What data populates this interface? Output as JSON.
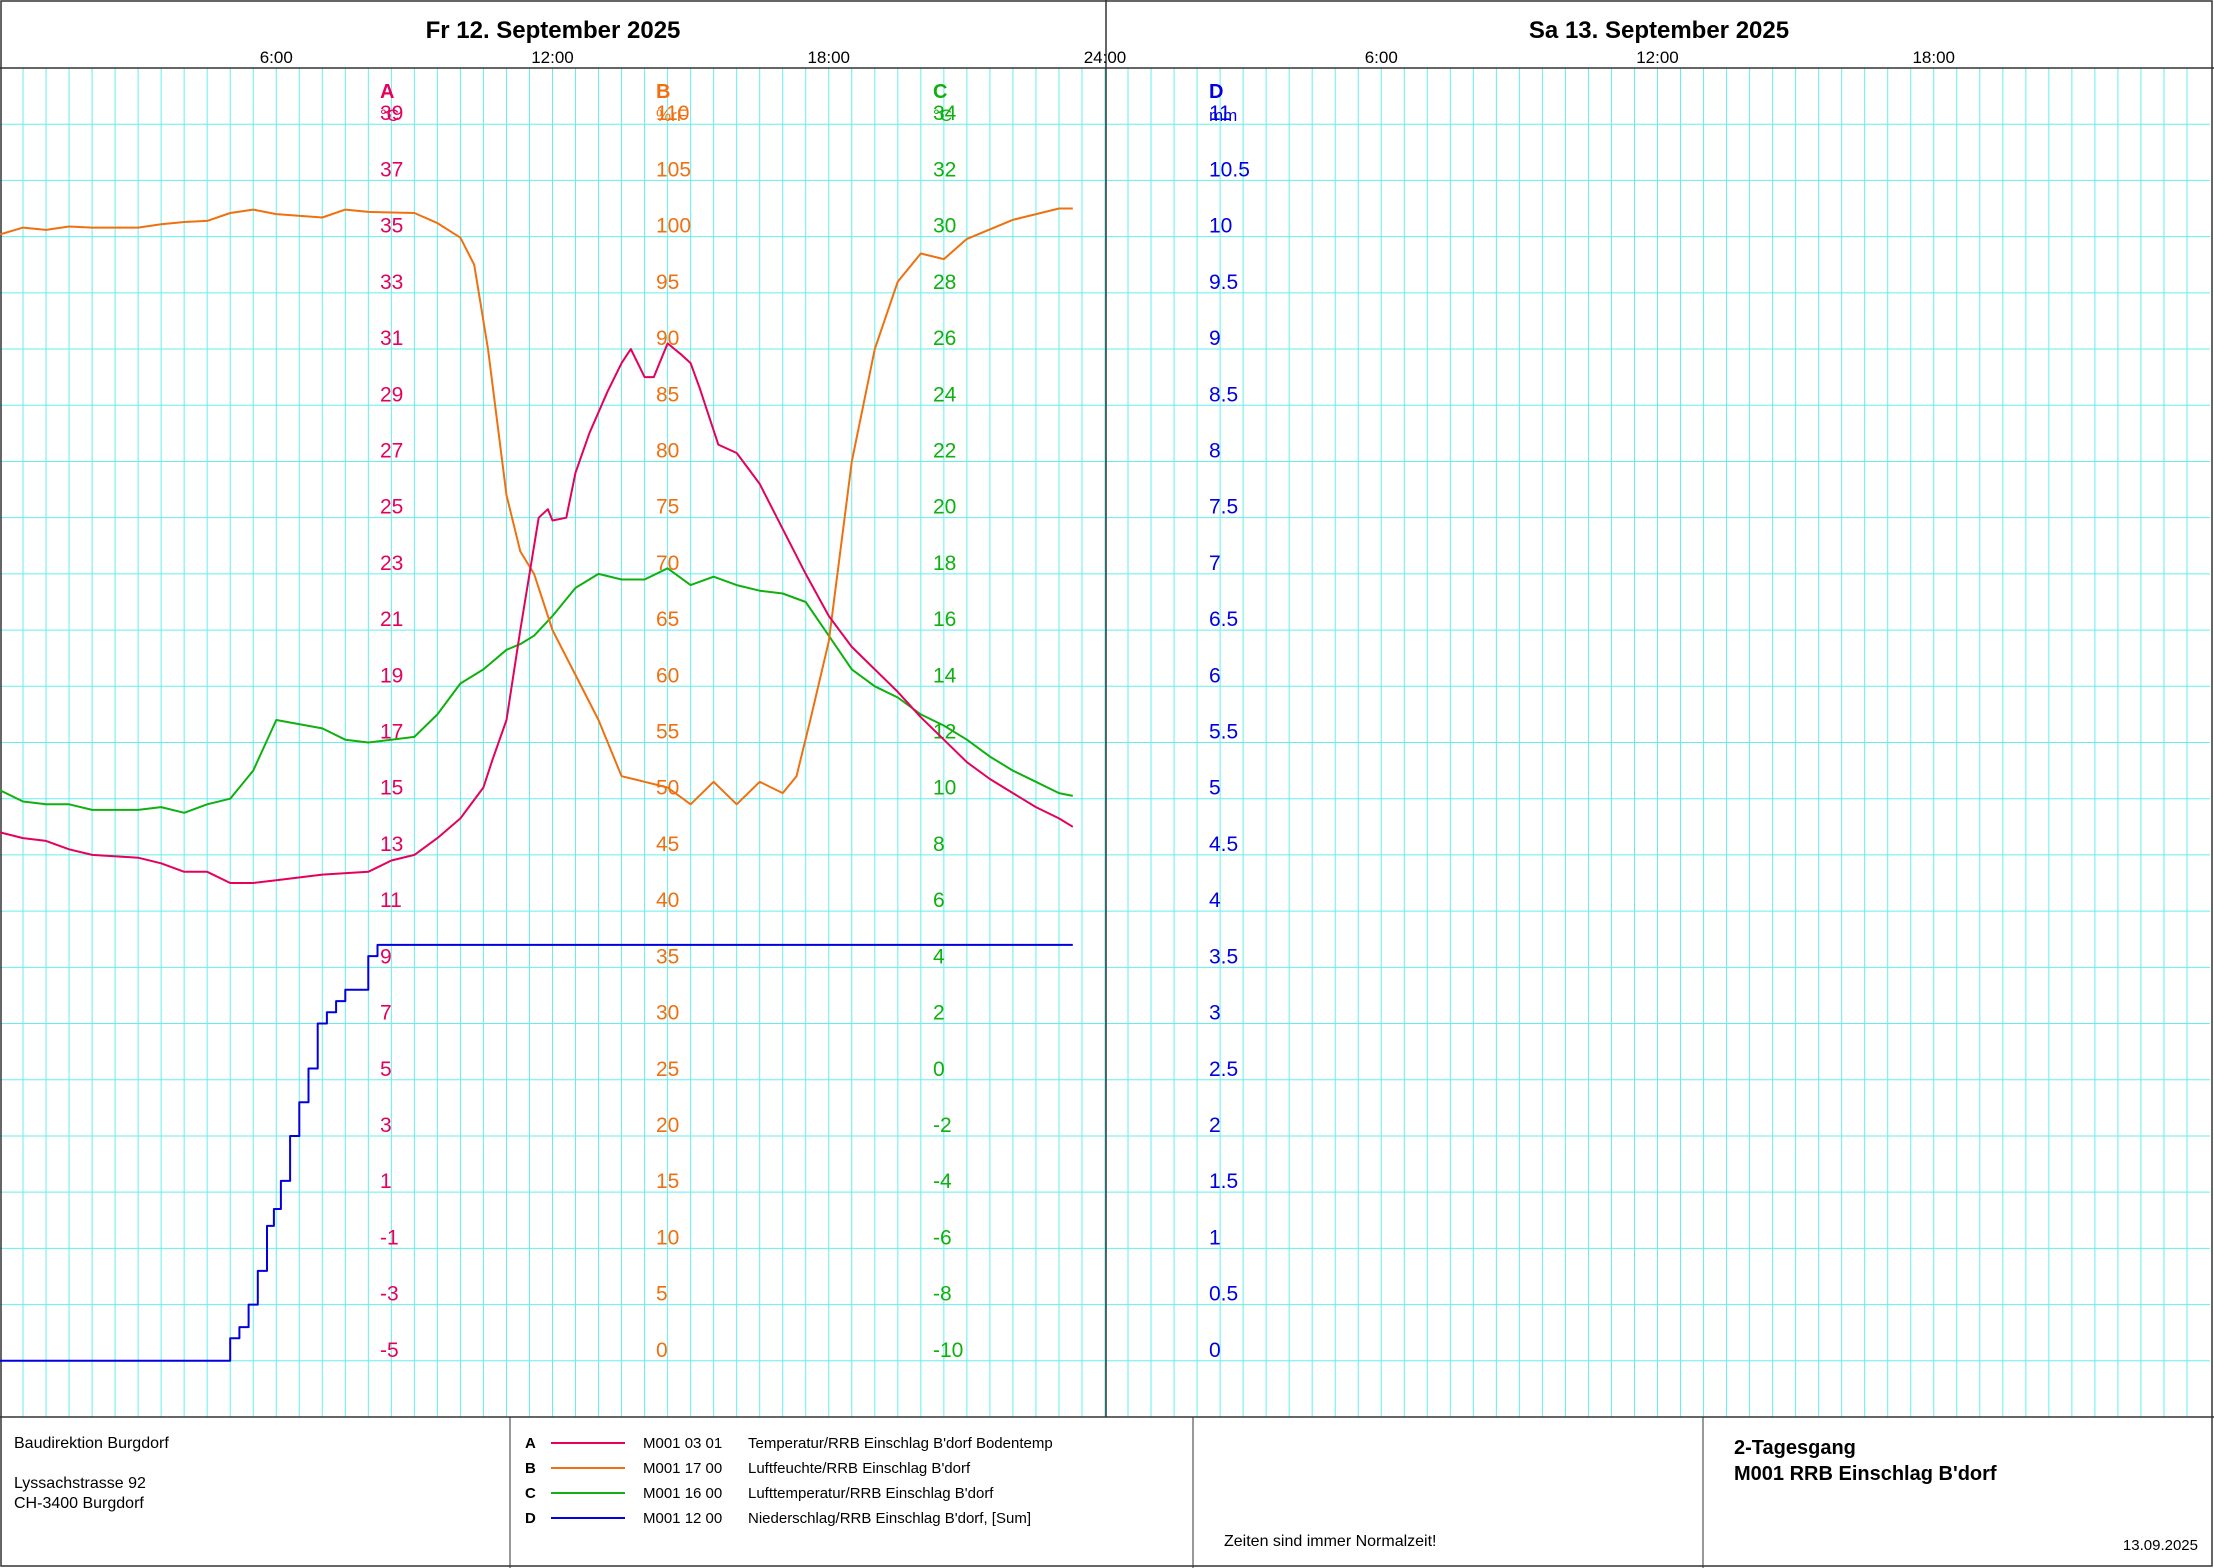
{
  "header": {
    "day1_label": "Fr  12. September  2025",
    "day2_label": "Sa  13. September  2025",
    "time_labels": [
      "6:00",
      "12:00",
      "18:00",
      "24:00",
      "6:00",
      "12:00",
      "18:00"
    ]
  },
  "footer": {
    "org_name": "Baudirektion Burgdorf",
    "org_street": "Lyssachstrasse 92",
    "org_city": "CH-3400 Burgdorf",
    "note": "Zeiten sind immer Normalzeit!",
    "title_line1": "2-Tagesgang",
    "title_line2": "M001 RRB Einschlag B'dorf",
    "date": "13.09.2025"
  },
  "legend": [
    {
      "letter": "A",
      "code": "M001 03 01",
      "text": "Temperatur/RRB Einschlag B'dorf Bodentemp",
      "color": "#e6005c"
    },
    {
      "letter": "B",
      "code": "M001 17 00",
      "text": "Luftfeuchte/RRB Einschlag B'dorf",
      "color": "#f07010"
    },
    {
      "letter": "C",
      "code": "M001 16 00",
      "text": "Lufttemperatur/RRB Einschlag B'dorf",
      "color": "#10b010"
    },
    {
      "letter": "D",
      "code": "M001 12 00",
      "text": "Niederschlag/RRB Einschlag B'dorf, [Sum]",
      "color": "#0000e0"
    }
  ],
  "colors": {
    "grid": "#66eeee",
    "frame": "#333333",
    "A": "#e6005c",
    "B": "#f07010",
    "C": "#10b010",
    "D": "#0000e0"
  },
  "chart_data": {
    "type": "line",
    "x_unit": "hours since Fr 12. September 2025 00:00",
    "xlim": [
      0,
      48
    ],
    "axes": [
      {
        "letter": "A",
        "unit": "°C",
        "ylim": [
          -5,
          39
        ],
        "ticks": [
          "39",
          "37",
          "35",
          "33",
          "31",
          "29",
          "27",
          "25",
          "23",
          "21",
          "19",
          "17",
          "15",
          "13",
          "11",
          "9",
          "7",
          "5",
          "3",
          "1",
          "-1",
          "-3",
          "-5"
        ]
      },
      {
        "letter": "B",
        "unit": "%rF",
        "ylim": [
          0,
          110
        ],
        "ticks": [
          "110",
          "105",
          "100",
          "95",
          "90",
          "85",
          "80",
          "75",
          "70",
          "65",
          "60",
          "55",
          "50",
          "45",
          "40",
          "35",
          "30",
          "25",
          "20",
          "15",
          "10",
          "5",
          "0"
        ]
      },
      {
        "letter": "C",
        "unit": "°C",
        "ylim": [
          -10,
          34
        ],
        "ticks": [
          "34",
          "32",
          "30",
          "28",
          "26",
          "24",
          "22",
          "20",
          "18",
          "16",
          "14",
          "12",
          "10",
          "8",
          "6",
          "4",
          "2",
          "0",
          "-2",
          "-4",
          "-6",
          "-8",
          "-10"
        ]
      },
      {
        "letter": "D",
        "unit": "mm",
        "ylim": [
          0,
          11
        ],
        "ticks": [
          "11",
          "10.5",
          "10",
          "9.5",
          "9",
          "8.5",
          "8",
          "7.5",
          "7",
          "6.5",
          "6",
          "5.5",
          "5",
          "4.5",
          "4",
          "3.5",
          "3",
          "2.5",
          "2",
          "1.5",
          "1",
          "0.5",
          "0"
        ]
      }
    ],
    "series": [
      {
        "name": "A",
        "points": [
          [
            0,
            13.8
          ],
          [
            0.5,
            13.6
          ],
          [
            1,
            13.5
          ],
          [
            1.5,
            13.2
          ],
          [
            2,
            13
          ],
          [
            3,
            12.9
          ],
          [
            3.5,
            12.7
          ],
          [
            4,
            12.4
          ],
          [
            4.5,
            12.4
          ],
          [
            5,
            12
          ],
          [
            5.5,
            12
          ],
          [
            6,
            12.1
          ],
          [
            7,
            12.3
          ],
          [
            8,
            12.4
          ],
          [
            8.5,
            12.8
          ],
          [
            9,
            13
          ],
          [
            9.5,
            13.6
          ],
          [
            10,
            14.3
          ],
          [
            10.5,
            15.4
          ],
          [
            10.7,
            16.4
          ],
          [
            11,
            17.8
          ],
          [
            11.3,
            21
          ],
          [
            11.5,
            23
          ],
          [
            11.7,
            25
          ],
          [
            11.9,
            25.3
          ],
          [
            12,
            24.9
          ],
          [
            12.3,
            25
          ],
          [
            12.5,
            26.6
          ],
          [
            12.8,
            28
          ],
          [
            13.2,
            29.5
          ],
          [
            13.5,
            30.5
          ],
          [
            13.7,
            31
          ],
          [
            14,
            30
          ],
          [
            14.2,
            30
          ],
          [
            14.5,
            31.2
          ],
          [
            14.8,
            30.8
          ],
          [
            15,
            30.5
          ],
          [
            15.2,
            29.6
          ],
          [
            15.6,
            27.6
          ],
          [
            16,
            27.3
          ],
          [
            16.5,
            26.2
          ],
          [
            17,
            24.6
          ],
          [
            17.5,
            23
          ],
          [
            18,
            21.5
          ],
          [
            18.5,
            20.4
          ],
          [
            19,
            19.6
          ],
          [
            19.5,
            18.8
          ],
          [
            20,
            17.9
          ],
          [
            20.5,
            17.1
          ],
          [
            21,
            16.3
          ],
          [
            21.5,
            15.7
          ],
          [
            22,
            15.2
          ],
          [
            22.5,
            14.7
          ],
          [
            23,
            14.3
          ],
          [
            23.3,
            14
          ]
        ]
      },
      {
        "name": "B",
        "points": [
          [
            0,
            100.2
          ],
          [
            0.5,
            100.8
          ],
          [
            1,
            100.6
          ],
          [
            1.5,
            100.9
          ],
          [
            2,
            100.8
          ],
          [
            3,
            100.8
          ],
          [
            3.5,
            101.1
          ],
          [
            4,
            101.3
          ],
          [
            4.5,
            101.4
          ],
          [
            5,
            102.1
          ],
          [
            5.5,
            102.4
          ],
          [
            6,
            102
          ],
          [
            7,
            101.7
          ],
          [
            7.5,
            102.4
          ],
          [
            8,
            102.2
          ],
          [
            9,
            102.1
          ],
          [
            9.5,
            101.2
          ],
          [
            10,
            99.9
          ],
          [
            10.3,
            97.5
          ],
          [
            10.6,
            90
          ],
          [
            11,
            77
          ],
          [
            11.3,
            72
          ],
          [
            11.6,
            70
          ],
          [
            12,
            65
          ],
          [
            12.5,
            61
          ],
          [
            13,
            57
          ],
          [
            13.5,
            52
          ],
          [
            14,
            51.5
          ],
          [
            14.5,
            51
          ],
          [
            15,
            49.5
          ],
          [
            15.5,
            51.5
          ],
          [
            16,
            49.5
          ],
          [
            16.5,
            51.5
          ],
          [
            17,
            50.5
          ],
          [
            17.3,
            52
          ],
          [
            17.6,
            57
          ],
          [
            18,
            64
          ],
          [
            18.5,
            80
          ],
          [
            19,
            90
          ],
          [
            19.5,
            96
          ],
          [
            20,
            98.5
          ],
          [
            20.5,
            98
          ],
          [
            21,
            99.8
          ],
          [
            22,
            101.5
          ],
          [
            23,
            102.5
          ],
          [
            23.3,
            102.5
          ]
        ]
      },
      {
        "name": "C",
        "points": [
          [
            0,
            10.3
          ],
          [
            0.5,
            9.9
          ],
          [
            1,
            9.8
          ],
          [
            1.5,
            9.8
          ],
          [
            2,
            9.6
          ],
          [
            3,
            9.6
          ],
          [
            3.5,
            9.7
          ],
          [
            4,
            9.5
          ],
          [
            4.5,
            9.8
          ],
          [
            5,
            10
          ],
          [
            5.5,
            11
          ],
          [
            6,
            12.8
          ],
          [
            7,
            12.5
          ],
          [
            7.5,
            12.1
          ],
          [
            8,
            12
          ],
          [
            9,
            12.2
          ],
          [
            9.5,
            13
          ],
          [
            10,
            14.1
          ],
          [
            10.5,
            14.6
          ],
          [
            11,
            15.3
          ],
          [
            11.3,
            15.5
          ],
          [
            11.6,
            15.8
          ],
          [
            12,
            16.5
          ],
          [
            12.5,
            17.5
          ],
          [
            13,
            18
          ],
          [
            13.5,
            17.8
          ],
          [
            14,
            17.8
          ],
          [
            14.5,
            18.2
          ],
          [
            15,
            17.6
          ],
          [
            15.5,
            17.9
          ],
          [
            16,
            17.6
          ],
          [
            16.5,
            17.4
          ],
          [
            17,
            17.3
          ],
          [
            17.5,
            17
          ],
          [
            18,
            15.8
          ],
          [
            18.5,
            14.6
          ],
          [
            19,
            14
          ],
          [
            19.5,
            13.6
          ],
          [
            20,
            13
          ],
          [
            20.5,
            12.6
          ],
          [
            21,
            12.1
          ],
          [
            21.5,
            11.5
          ],
          [
            22,
            11
          ],
          [
            22.5,
            10.6
          ],
          [
            23,
            10.2
          ],
          [
            23.3,
            10.1
          ]
        ]
      },
      {
        "name": "D",
        "step": true,
        "points": [
          [
            0,
            0
          ],
          [
            4.8,
            0
          ],
          [
            5,
            0.2
          ],
          [
            5.2,
            0.3
          ],
          [
            5.4,
            0.5
          ],
          [
            5.6,
            0.8
          ],
          [
            5.8,
            1.2
          ],
          [
            5.95,
            1.35
          ],
          [
            6.1,
            1.6
          ],
          [
            6.3,
            2
          ],
          [
            6.5,
            2.3
          ],
          [
            6.7,
            2.6
          ],
          [
            6.9,
            3
          ],
          [
            7.1,
            3.1
          ],
          [
            7.3,
            3.2
          ],
          [
            7.5,
            3.3
          ],
          [
            8,
            3.5
          ],
          [
            8,
            3.6
          ],
          [
            8.2,
            3.65
          ],
          [
            8.2,
            3.7
          ],
          [
            23.3,
            3.7
          ]
        ]
      }
    ]
  }
}
